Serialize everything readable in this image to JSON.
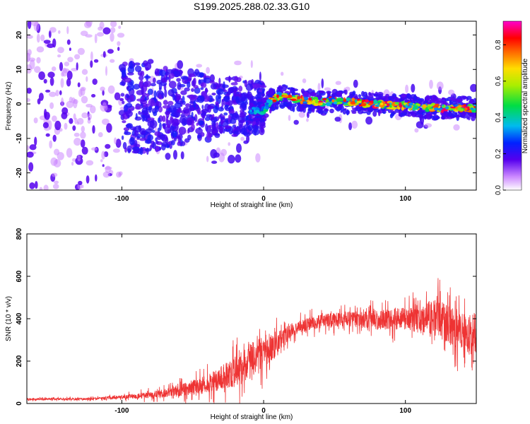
{
  "title": "S199.2025.288.02.33.G10",
  "chart_data": [
    {
      "type": "heatmap",
      "xlabel": "Height of straight line (km)",
      "ylabel": "Frequency (Hz)",
      "xlim": [
        -167,
        150
      ],
      "ylim": [
        -25,
        24
      ],
      "x_ticks": [
        -100,
        0,
        100
      ],
      "y_ticks": [
        20,
        10,
        0,
        -10,
        -20
      ],
      "colorbar": {
        "label": "Normalized spectral amplitude",
        "range": [
          0.0,
          0.93
        ],
        "ticks": [
          0.0,
          0.2,
          0.4,
          0.6,
          0.8
        ]
      },
      "ridge": {
        "description_free_values": true,
        "x": [
          -10,
          0,
          5,
          10,
          15,
          20,
          30,
          40,
          50,
          60,
          70,
          80,
          90,
          100,
          110,
          120,
          130,
          140,
          150
        ],
        "freq": [
          -2,
          -2,
          1,
          2,
          2.5,
          1.5,
          1,
          0.5,
          1,
          0.5,
          0.2,
          0,
          -0.5,
          -0.5,
          -1,
          -1,
          -1.5,
          -1,
          -1.5
        ]
      }
    },
    {
      "type": "line",
      "xlabel": "Height of straight line (km)",
      "ylabel": "SNR (10 * v/v)",
      "xlim": [
        -167,
        150
      ],
      "ylim": [
        0,
        800
      ],
      "x_ticks": [
        -100,
        0,
        100
      ],
      "y_ticks": [
        0,
        200,
        400,
        600,
        800
      ],
      "series": [
        {
          "name": "SNR",
          "color": "#ee3333",
          "x": [
            -167,
            -120,
            -100,
            -80,
            -60,
            -40,
            -20,
            -10,
            0,
            10,
            20,
            40,
            60,
            80,
            100,
            110,
            120,
            130,
            140,
            150
          ],
          "mean": [
            20,
            22,
            30,
            40,
            60,
            90,
            150,
            190,
            240,
            290,
            350,
            390,
            400,
            395,
            400,
            390,
            410,
            370,
            340,
            330
          ],
          "spread": [
            10,
            12,
            20,
            35,
            60,
            100,
            160,
            200,
            180,
            120,
            70,
            70,
            80,
            100,
            120,
            140,
            200,
            200,
            200,
            220
          ]
        }
      ]
    }
  ]
}
